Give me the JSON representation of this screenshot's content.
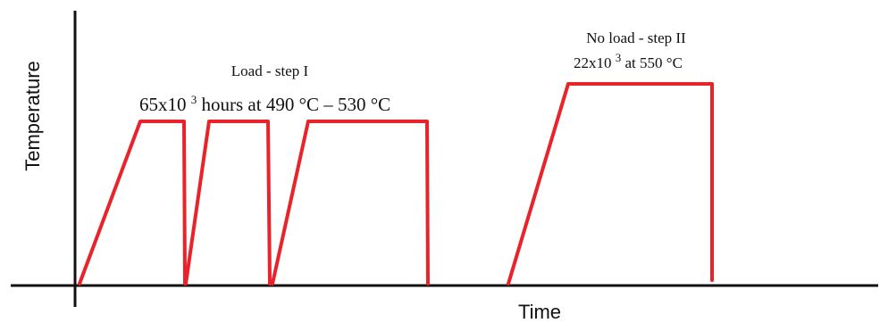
{
  "axes": {
    "x_label": "Time",
    "y_label": "Temperature"
  },
  "annotations": {
    "step1_title": "Load - step I",
    "step1_detail_prefix": "65x10",
    "step1_detail_sup": "3",
    "step1_detail_suffix": " hours at 490 °C – 530 °C",
    "step2_title": "No load - step II",
    "step2_detail_prefix": "22x10",
    "step2_detail_sup": "3",
    "step2_detail_suffix": " at 550 °C"
  },
  "colors": {
    "profile": "#e8232a",
    "axis": "#111111"
  }
}
